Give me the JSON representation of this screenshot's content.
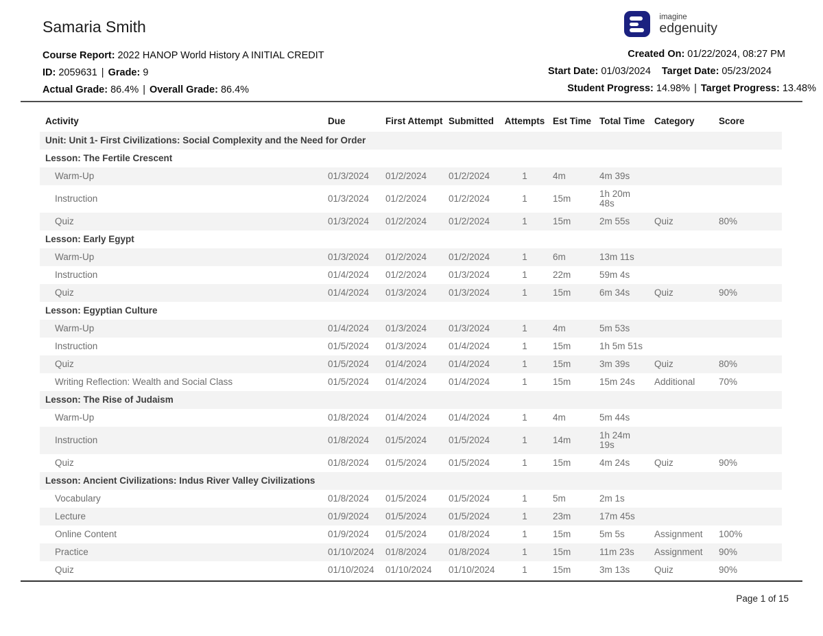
{
  "header": {
    "student_name": "Samaria Smith",
    "separator": "|",
    "course_report_label": "Course Report:",
    "course_report_value": "2022 HANOP World History A INITIAL CREDIT",
    "id_label": "ID:",
    "id_value": "2059631",
    "grade_label": "Grade:",
    "grade_value": "9",
    "actual_grade_label": "Actual Grade:",
    "actual_grade_value": "86.4%",
    "overall_grade_label": "Overall Grade:",
    "overall_grade_value": "86.4%",
    "logo": {
      "brand_top": "imagine",
      "brand_bottom": "edgenuity",
      "icon_color": "#1b2180"
    },
    "created_on_label": "Created On:",
    "created_on_value": "01/22/2024, 08:27 PM",
    "start_date_label": "Start Date:",
    "start_date_value": "01/03/2024",
    "target_date_label": "Target Date:",
    "target_date_value": "05/23/2024",
    "student_progress_label": "Student Progress:",
    "student_progress_value": "14.98%",
    "target_progress_label": "Target Progress:",
    "target_progress_value": "13.48%"
  },
  "table": {
    "columns": [
      "Activity",
      "Due",
      "First Attempt",
      "Submitted",
      "Attempts",
      "Est Time",
      "Total Time",
      "Category",
      "Score"
    ],
    "rows": [
      {
        "type": "unit",
        "label": "Unit: Unit 1- First Civilizations: Social Complexity and the Need for Order"
      },
      {
        "type": "lesson",
        "label": "Lesson: The Fertile Crescent"
      },
      {
        "type": "activity",
        "activity": "Warm-Up",
        "due": "01/3/2024",
        "first_attempt": "01/2/2024",
        "submitted": "01/2/2024",
        "attempts": "1",
        "est_time": "4m",
        "total_time": "4m 39s",
        "category": "",
        "score": ""
      },
      {
        "type": "activity",
        "activity": "Instruction",
        "due": "01/3/2024",
        "first_attempt": "01/2/2024",
        "submitted": "01/2/2024",
        "attempts": "1",
        "est_time": "15m",
        "total_time": "1h 20m\n48s",
        "category": "",
        "score": ""
      },
      {
        "type": "activity",
        "activity": "Quiz",
        "due": "01/3/2024",
        "first_attempt": "01/2/2024",
        "submitted": "01/2/2024",
        "attempts": "1",
        "est_time": "15m",
        "total_time": "2m 55s",
        "category": "Quiz",
        "score": "80%"
      },
      {
        "type": "lesson",
        "label": "Lesson: Early Egypt"
      },
      {
        "type": "activity",
        "activity": "Warm-Up",
        "due": "01/3/2024",
        "first_attempt": "01/2/2024",
        "submitted": "01/2/2024",
        "attempts": "1",
        "est_time": "6m",
        "total_time": "13m 11s",
        "category": "",
        "score": ""
      },
      {
        "type": "activity",
        "activity": "Instruction",
        "due": "01/4/2024",
        "first_attempt": "01/2/2024",
        "submitted": "01/3/2024",
        "attempts": "1",
        "est_time": "22m",
        "total_time": "59m 4s",
        "category": "",
        "score": ""
      },
      {
        "type": "activity",
        "activity": "Quiz",
        "due": "01/4/2024",
        "first_attempt": "01/3/2024",
        "submitted": "01/3/2024",
        "attempts": "1",
        "est_time": "15m",
        "total_time": "6m 34s",
        "category": "Quiz",
        "score": "90%"
      },
      {
        "type": "lesson",
        "label": "Lesson: Egyptian Culture"
      },
      {
        "type": "activity",
        "activity": "Warm-Up",
        "due": "01/4/2024",
        "first_attempt": "01/3/2024",
        "submitted": "01/3/2024",
        "attempts": "1",
        "est_time": "4m",
        "total_time": "5m 53s",
        "category": "",
        "score": ""
      },
      {
        "type": "activity",
        "activity": "Instruction",
        "due": "01/5/2024",
        "first_attempt": "01/3/2024",
        "submitted": "01/4/2024",
        "attempts": "1",
        "est_time": "15m",
        "total_time": "1h 5m 51s",
        "category": "",
        "score": ""
      },
      {
        "type": "activity",
        "activity": "Quiz",
        "due": "01/5/2024",
        "first_attempt": "01/4/2024",
        "submitted": "01/4/2024",
        "attempts": "1",
        "est_time": "15m",
        "total_time": "3m 39s",
        "category": "Quiz",
        "score": "80%"
      },
      {
        "type": "activity",
        "activity": "Writing Reflection: Wealth and Social Class",
        "due": "01/5/2024",
        "first_attempt": "01/4/2024",
        "submitted": "01/4/2024",
        "attempts": "1",
        "est_time": "15m",
        "total_time": "15m 24s",
        "category": "Additional",
        "score": "70%"
      },
      {
        "type": "lesson",
        "label": "Lesson: The Rise of Judaism"
      },
      {
        "type": "activity",
        "activity": "Warm-Up",
        "due": "01/8/2024",
        "first_attempt": "01/4/2024",
        "submitted": "01/4/2024",
        "attempts": "1",
        "est_time": "4m",
        "total_time": "5m 44s",
        "category": "",
        "score": ""
      },
      {
        "type": "activity",
        "activity": "Instruction",
        "due": "01/8/2024",
        "first_attempt": "01/5/2024",
        "submitted": "01/5/2024",
        "attempts": "1",
        "est_time": "14m",
        "total_time": "1h 24m\n19s",
        "category": "",
        "score": ""
      },
      {
        "type": "activity",
        "activity": "Quiz",
        "due": "01/8/2024",
        "first_attempt": "01/5/2024",
        "submitted": "01/5/2024",
        "attempts": "1",
        "est_time": "15m",
        "total_time": "4m 24s",
        "category": "Quiz",
        "score": "90%"
      },
      {
        "type": "lesson",
        "label": "Lesson: Ancient Civilizations: Indus River Valley Civilizations"
      },
      {
        "type": "activity",
        "activity": "Vocabulary",
        "due": "01/8/2024",
        "first_attempt": "01/5/2024",
        "submitted": "01/5/2024",
        "attempts": "1",
        "est_time": "5m",
        "total_time": "2m 1s",
        "category": "",
        "score": ""
      },
      {
        "type": "activity",
        "activity": "Lecture",
        "due": "01/9/2024",
        "first_attempt": "01/5/2024",
        "submitted": "01/5/2024",
        "attempts": "1",
        "est_time": "23m",
        "total_time": "17m 45s",
        "category": "",
        "score": ""
      },
      {
        "type": "activity",
        "activity": "Online Content",
        "due": "01/9/2024",
        "first_attempt": "01/5/2024",
        "submitted": "01/8/2024",
        "attempts": "1",
        "est_time": "15m",
        "total_time": "5m 5s",
        "category": "Assignment",
        "score": "100%"
      },
      {
        "type": "activity",
        "activity": "Practice",
        "due": "01/10/2024",
        "first_attempt": "01/8/2024",
        "submitted": "01/8/2024",
        "attempts": "1",
        "est_time": "15m",
        "total_time": "11m 23s",
        "category": "Assignment",
        "score": "90%"
      },
      {
        "type": "activity",
        "activity": "Quiz",
        "due": "01/10/2024",
        "first_attempt": "01/10/2024",
        "submitted": "01/10/2024",
        "attempts": "1",
        "est_time": "15m",
        "total_time": "3m 13s",
        "category": "Quiz",
        "score": "90%"
      }
    ]
  },
  "footer": {
    "page_text": "Page 1 of 15"
  }
}
